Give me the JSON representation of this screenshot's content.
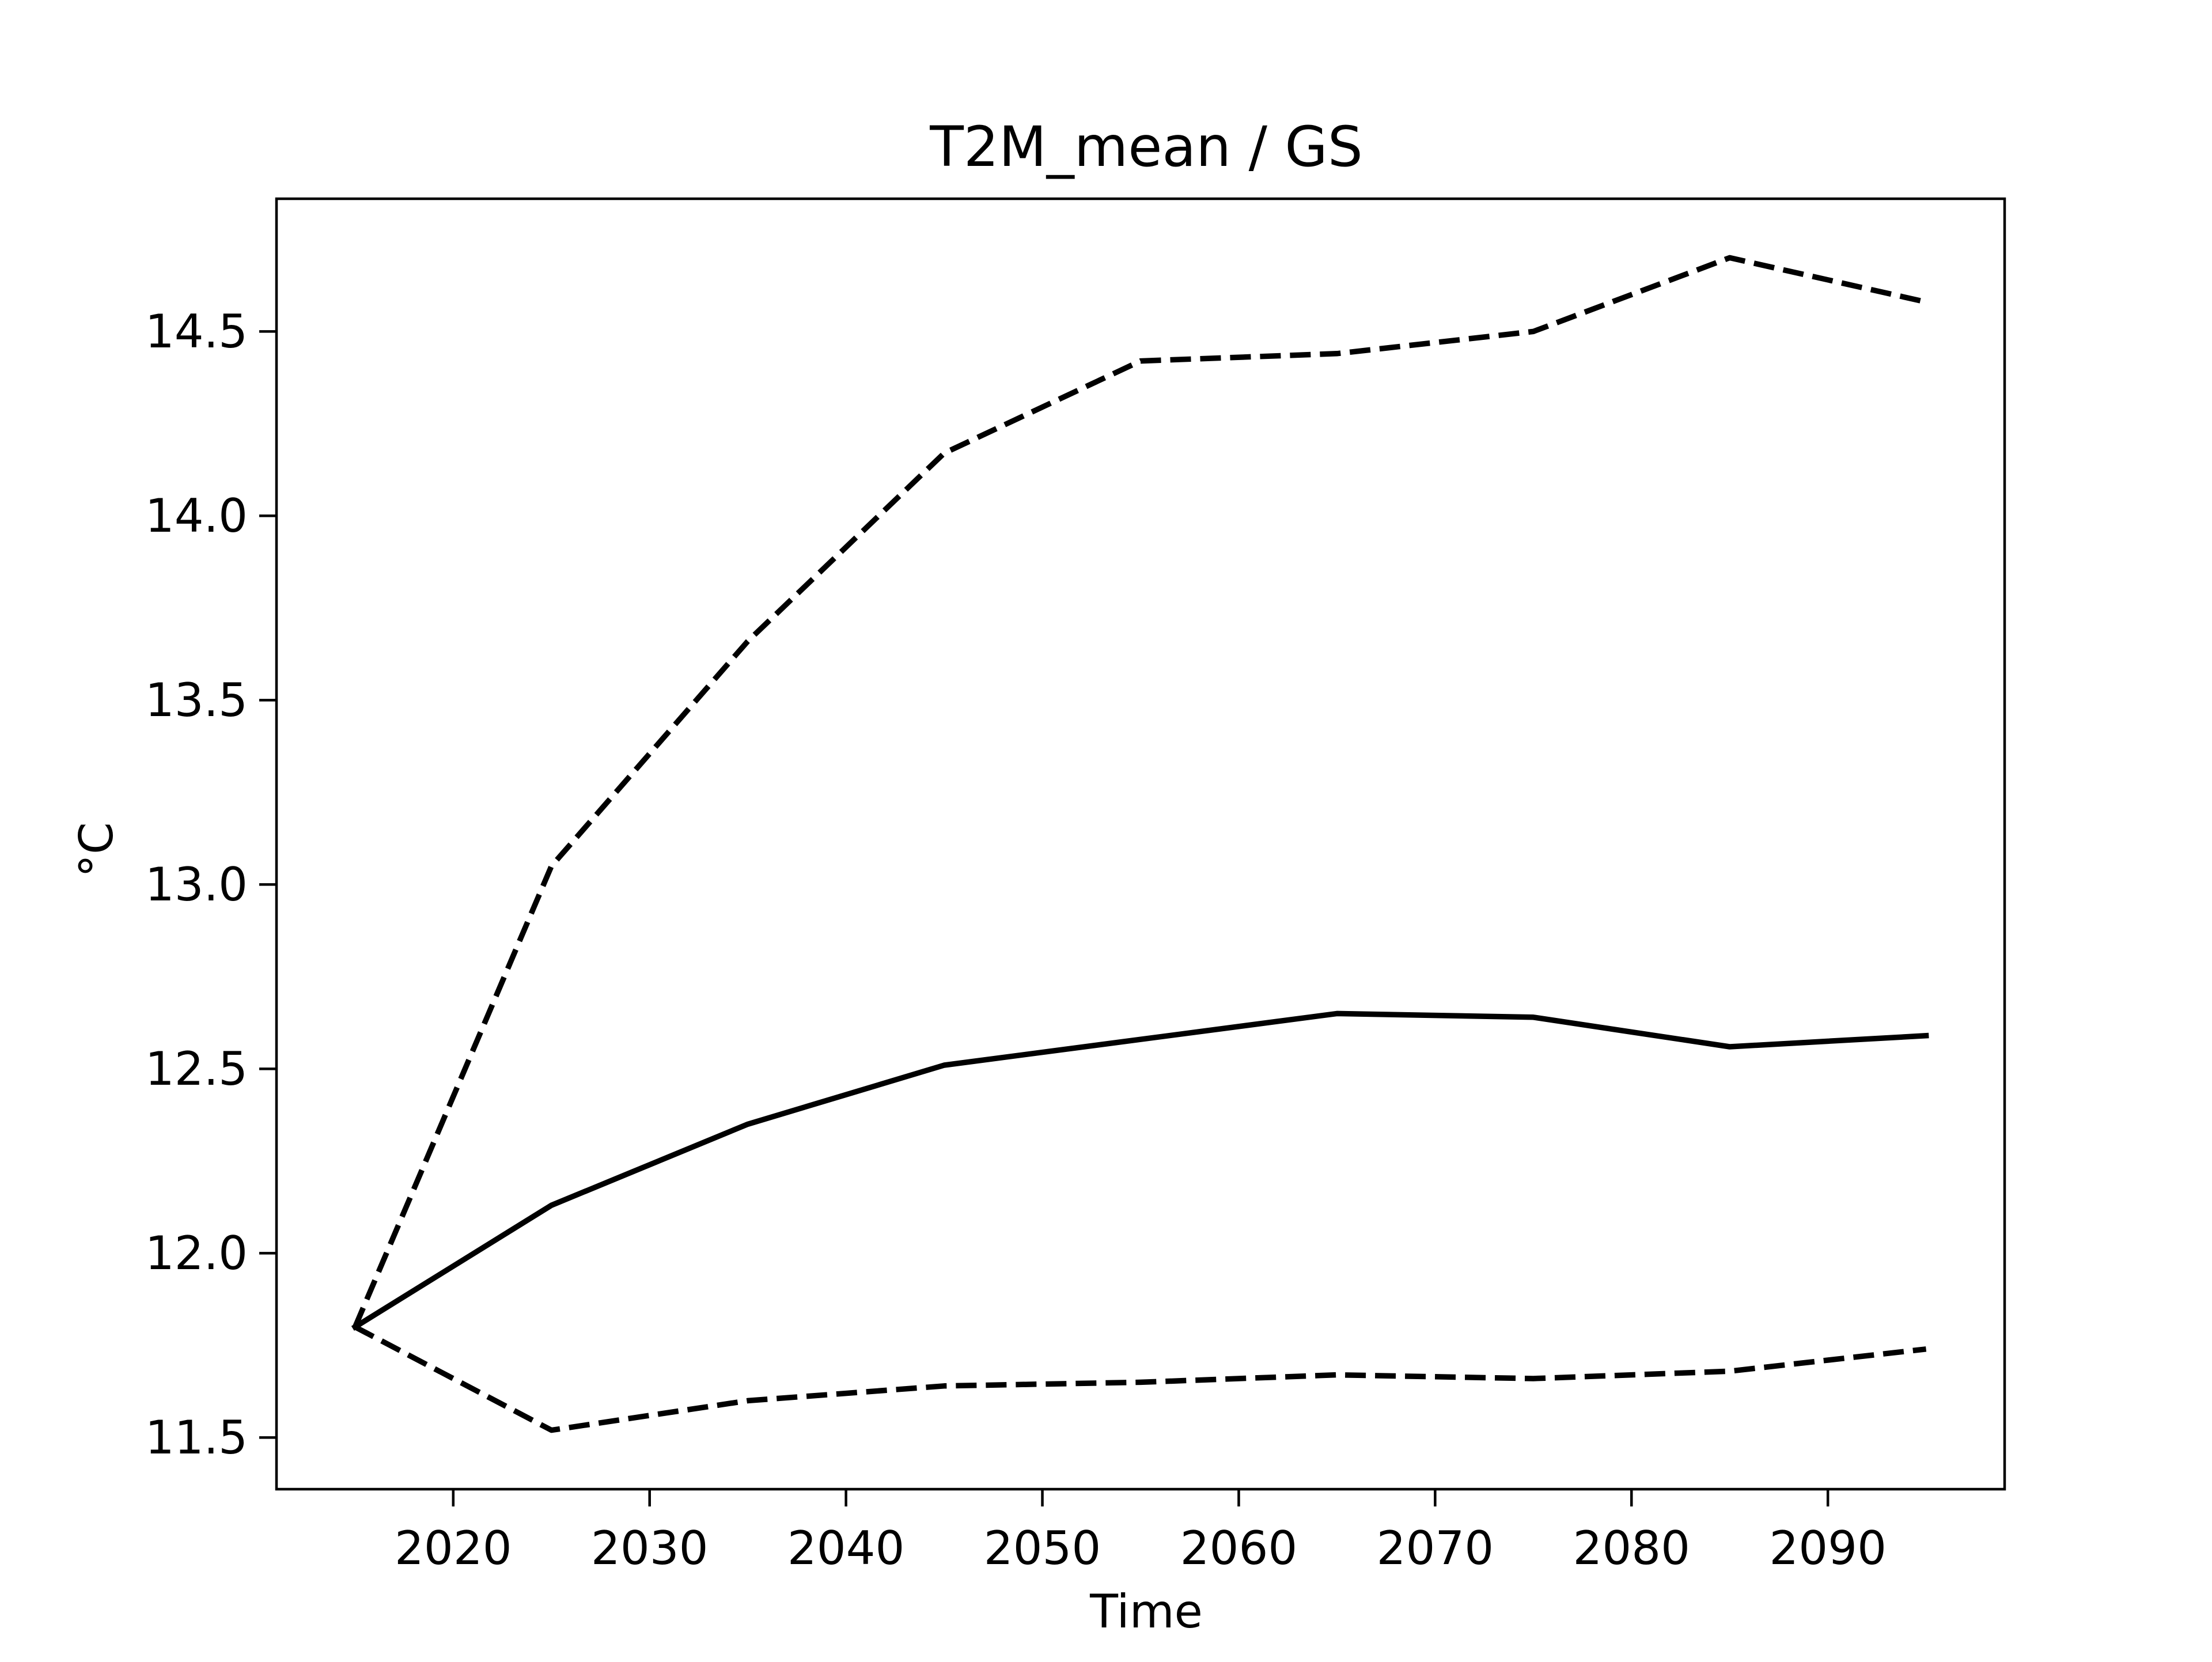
{
  "chart_data": {
    "type": "line",
    "title": "T2M_mean / GS",
    "xlabel": "Time",
    "ylabel": "°C",
    "xlim": [
      2011,
      2099
    ],
    "ylim": [
      11.36,
      14.86
    ],
    "x": [
      2015,
      2025,
      2035,
      2045,
      2055,
      2065,
      2075,
      2085,
      2095
    ],
    "x_ticks": [
      2020,
      2030,
      2040,
      2050,
      2060,
      2070,
      2080,
      2090
    ],
    "x_tick_labels": [
      "2020",
      "2030",
      "2040",
      "2050",
      "2060",
      "2070",
      "2080",
      "2090"
    ],
    "y_ticks": [
      11.5,
      12.0,
      12.5,
      13.0,
      13.5,
      14.0,
      14.5
    ],
    "y_tick_labels": [
      "11.5",
      "12.0",
      "12.5",
      "13.0",
      "13.5",
      "14.0",
      "14.5"
    ],
    "grid": false,
    "legend": "none",
    "series": [
      {
        "style": "solid",
        "color": "#000000",
        "values": [
          11.8,
          12.13,
          12.35,
          12.51,
          12.58,
          12.65,
          12.64,
          12.56,
          12.59
        ]
      },
      {
        "style": "dashed",
        "color": "#000000",
        "values": [
          11.8,
          13.05,
          13.66,
          14.17,
          14.42,
          14.44,
          14.5,
          14.7,
          14.58
        ]
      },
      {
        "style": "dashed",
        "color": "#000000",
        "values": [
          11.8,
          11.52,
          11.6,
          11.64,
          11.65,
          11.67,
          11.66,
          11.68,
          11.74
        ]
      }
    ]
  }
}
